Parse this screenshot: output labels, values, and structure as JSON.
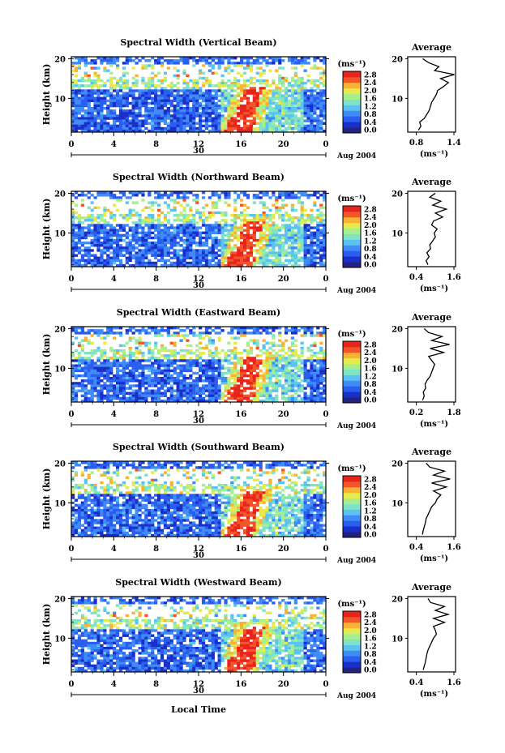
{
  "figure": {
    "ylabel": "Height (km)",
    "xlabel": "Local Time",
    "date_label": "Aug 2004",
    "day_label": "30",
    "colorbar_unit": "(ms⁻¹)",
    "profile_title": "Average",
    "profile_xlabel": "(ms⁻¹)",
    "colors": {
      "background": "#ffffff",
      "axis": "#000000",
      "colormap": [
        "#23237f",
        "#1a2fc8",
        "#2a5ef0",
        "#3f8cf7",
        "#5cc2f2",
        "#7fe3c6",
        "#a7ef8e",
        "#e6ea4c",
        "#f9b233",
        "#f3542a",
        "#e8231c"
      ]
    }
  },
  "chart_data": [
    {
      "type": "heatmap",
      "title": "Spectral Width (Vertical Beam)",
      "x": [
        0,
        4,
        8,
        12,
        16,
        20,
        24
      ],
      "xtick_labels": [
        "0",
        "4",
        "8",
        "12",
        "16",
        "20",
        "0"
      ],
      "xlim": [
        0,
        24
      ],
      "yticks": [
        10,
        20
      ],
      "ylim": [
        1.5,
        20.5
      ],
      "colorbar": {
        "ticks": [
          "0.0",
          "0.4",
          "0.8",
          "1.2",
          "1.6",
          "2.0",
          "2.4",
          "2.8"
        ],
        "range": [
          0.0,
          2.8
        ]
      },
      "profile": {
        "xlim": [
          0.6,
          1.4
        ],
        "xtick_labels": [
          "0.8",
          "1.4"
        ],
        "heights": [
          2,
          3,
          4,
          5,
          6,
          7,
          8,
          9,
          10,
          11,
          12,
          13,
          14,
          15,
          16,
          17,
          18,
          19,
          20
        ],
        "values": [
          0.78,
          0.82,
          0.8,
          0.88,
          0.92,
          0.96,
          0.98,
          1.0,
          1.04,
          1.08,
          1.1,
          1.2,
          1.28,
          1.15,
          1.38,
          1.05,
          1.12,
          0.95,
          0.85
        ]
      }
    },
    {
      "type": "heatmap",
      "title": "Spectral Width (Northward Beam)",
      "x": [
        0,
        4,
        8,
        12,
        16,
        20,
        24
      ],
      "xtick_labels": [
        "0",
        "4",
        "8",
        "12",
        "16",
        "20",
        "0"
      ],
      "xlim": [
        0,
        24
      ],
      "yticks": [
        10,
        20
      ],
      "ylim": [
        1.5,
        20.5
      ],
      "colorbar": {
        "ticks": [
          "0.0",
          "0.4",
          "0.8",
          "1.2",
          "1.6",
          "2.0",
          "2.4",
          "2.8"
        ],
        "range": [
          0.0,
          2.8
        ]
      },
      "profile": {
        "xlim": [
          0.3,
          1.6
        ],
        "xtick_labels": [
          "0.4",
          "1.6"
        ],
        "heights": [
          2,
          3,
          4,
          5,
          6,
          7,
          8,
          9,
          10,
          11,
          12,
          13,
          14,
          15,
          16,
          17,
          18,
          19,
          20
        ],
        "values": [
          0.85,
          0.8,
          0.88,
          0.82,
          0.92,
          0.9,
          0.98,
          1.05,
          1.02,
          1.1,
          0.95,
          1.0,
          1.25,
          1.05,
          1.35,
          0.98,
          1.2,
          0.9,
          1.05
        ]
      }
    },
    {
      "type": "heatmap",
      "title": "Spectral Width (Eastward Beam)",
      "x": [
        0,
        4,
        8,
        12,
        16,
        20,
        24
      ],
      "xtick_labels": [
        "0",
        "4",
        "8",
        "12",
        "16",
        "20",
        "0"
      ],
      "xlim": [
        0,
        24
      ],
      "yticks": [
        10,
        20
      ],
      "ylim": [
        1.5,
        20.5
      ],
      "colorbar": {
        "ticks": [
          "0.0",
          "0.4",
          "0.8",
          "1.2",
          "1.6",
          "2.0",
          "2.4",
          "2.8"
        ],
        "range": [
          0.0,
          2.8
        ]
      },
      "profile": {
        "xlim": [
          0.2,
          1.8
        ],
        "xtick_labels": [
          "0.2",
          "1.8"
        ],
        "heights": [
          2,
          3,
          4,
          5,
          6,
          7,
          8,
          9,
          10,
          11,
          12,
          13,
          14,
          15,
          16,
          17,
          18,
          19,
          20
        ],
        "values": [
          0.7,
          0.75,
          0.72,
          0.8,
          0.78,
          0.85,
          0.95,
          1.0,
          1.05,
          1.1,
          1.0,
          0.9,
          1.4,
          0.95,
          1.6,
          1.0,
          1.35,
          0.9,
          0.75
        ]
      }
    },
    {
      "type": "heatmap",
      "title": "Spectral Width (Southward Beam)",
      "x": [
        0,
        4,
        8,
        12,
        16,
        20,
        24
      ],
      "xtick_labels": [
        "0",
        "4",
        "8",
        "12",
        "16",
        "20",
        "0"
      ],
      "xlim": [
        0,
        24
      ],
      "yticks": [
        10,
        20
      ],
      "ylim": [
        1.5,
        20.5
      ],
      "colorbar": {
        "ticks": [
          "0.0",
          "0.4",
          "0.8",
          "1.2",
          "1.6",
          "2.0",
          "2.4",
          "2.8"
        ],
        "range": [
          0.0,
          2.8
        ]
      },
      "profile": {
        "xlim": [
          0.3,
          1.6
        ],
        "xtick_labels": [
          "0.4",
          "1.6"
        ],
        "heights": [
          2,
          3,
          4,
          5,
          6,
          7,
          8,
          9,
          10,
          11,
          12,
          13,
          14,
          15,
          16,
          17,
          18,
          19,
          20
        ],
        "values": [
          0.7,
          0.72,
          0.75,
          0.78,
          0.8,
          0.85,
          0.9,
          0.95,
          1.05,
          1.1,
          1.2,
          1.0,
          1.35,
          0.95,
          1.45,
          1.0,
          1.3,
          0.9,
          0.8
        ]
      }
    },
    {
      "type": "heatmap",
      "title": "Spectral Width (Westward Beam)",
      "x": [
        0,
        4,
        8,
        12,
        16,
        20,
        24
      ],
      "xtick_labels": [
        "0",
        "4",
        "8",
        "12",
        "16",
        "20",
        "0"
      ],
      "xlim": [
        0,
        24
      ],
      "yticks": [
        10,
        20
      ],
      "ylim": [
        1.5,
        20.5
      ],
      "colorbar": {
        "ticks": [
          "0.0",
          "0.4",
          "0.8",
          "1.2",
          "1.6",
          "2.0",
          "2.4",
          "2.8"
        ],
        "range": [
          0.0,
          2.8
        ]
      },
      "profile": {
        "xlim": [
          0.3,
          1.6
        ],
        "xtick_labels": [
          "0.4",
          "1.6"
        ],
        "heights": [
          2,
          3,
          4,
          5,
          6,
          7,
          8,
          9,
          10,
          11,
          12,
          13,
          14,
          15,
          16,
          17,
          18,
          19,
          20
        ],
        "values": [
          0.72,
          0.75,
          0.78,
          0.8,
          0.82,
          0.85,
          0.9,
          0.95,
          1.0,
          1.08,
          1.05,
          1.0,
          1.3,
          1.0,
          1.4,
          1.05,
          1.3,
          0.92,
          0.85
        ]
      }
    }
  ]
}
